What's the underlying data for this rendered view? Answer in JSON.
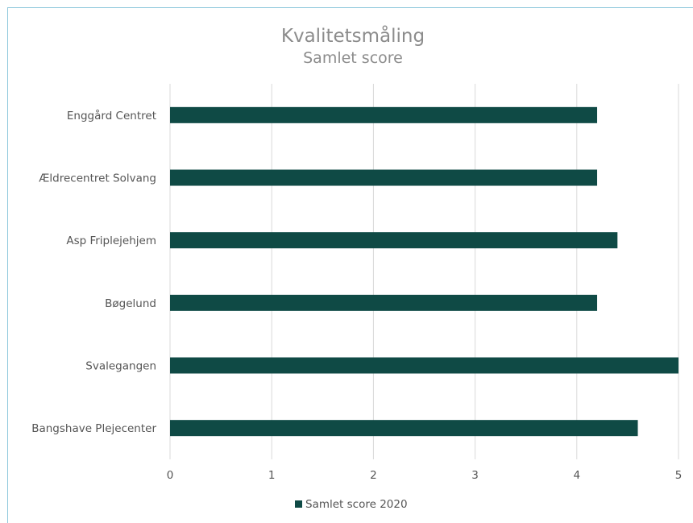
{
  "chart_data": {
    "type": "bar",
    "orientation": "horizontal",
    "title": "Kvalitetsmåling",
    "subtitle": "Samlet score",
    "categories": [
      "Enggård Centret",
      "Ældrecentret Solvang",
      "Asp Friplejehjem",
      "Bøgelund",
      "Svalegangen",
      "Bangshave Plejecenter"
    ],
    "series": [
      {
        "name": "Samlet score 2020",
        "color": "#0f4a45",
        "values": [
          4.2,
          4.2,
          4.4,
          4.2,
          5.0,
          4.6
        ]
      }
    ],
    "xlim": [
      0,
      5
    ],
    "xticks": [
      "0",
      "1",
      "2",
      "3",
      "4",
      "5"
    ],
    "grid": "vertical",
    "legend_position": "bottom"
  }
}
